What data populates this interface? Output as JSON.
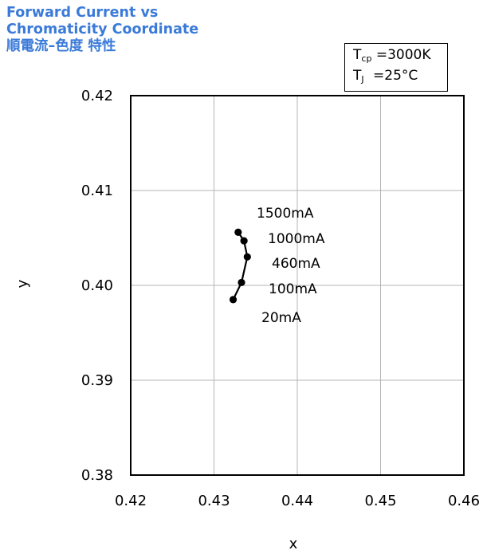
{
  "title": {
    "line1": "Forward Current vs",
    "line2": "Chromaticity Coordinate",
    "line3": "順電流–色度 特性",
    "color": "#3a7ad8"
  },
  "conditions": {
    "tcp": {
      "symbol": "T",
      "sub": "cp",
      "value": "=3000K"
    },
    "tj": {
      "symbol": "T",
      "sub": "J",
      "value": "=25°C"
    }
  },
  "chart_data": {
    "type": "line",
    "xlabel": "x",
    "ylabel": "y",
    "xlim": [
      0.42,
      0.46
    ],
    "ylim": [
      0.38,
      0.42
    ],
    "xticks": [
      "0.42",
      "0.43",
      "0.44",
      "0.45",
      "0.46"
    ],
    "yticks": [
      "0.42",
      "0.41",
      "0.40",
      "0.39",
      "0.38"
    ],
    "grid": true,
    "series": [
      {
        "points": [
          {
            "x": 0.4323,
            "y": 0.3985
          },
          {
            "x": 0.4333,
            "y": 0.4003
          },
          {
            "x": 0.434,
            "y": 0.403
          },
          {
            "x": 0.4336,
            "y": 0.4047
          },
          {
            "x": 0.4329,
            "y": 0.4056
          }
        ]
      }
    ],
    "annotations": [
      "1500mA",
      "1000mA",
      "460mA",
      "100mA",
      "20mA"
    ]
  }
}
